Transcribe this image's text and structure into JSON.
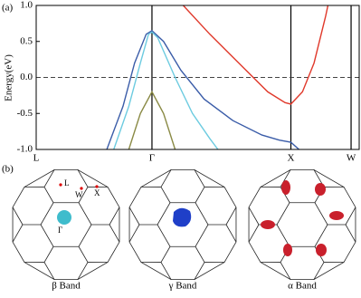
{
  "chart_data": {
    "type": "line",
    "label": "(a)",
    "ylabel": "Energy(eV)",
    "xlim": [
      0,
      2.79
    ],
    "ylim": [
      -1.0,
      1.0
    ],
    "xticks": [
      {
        "value": 0,
        "label": "L"
      },
      {
        "value": 1.0,
        "label": "Γ"
      },
      {
        "value": 2.2,
        "label": "X"
      },
      {
        "value": 2.72,
        "label": "W"
      }
    ],
    "yticks": [
      {
        "value": -1.0,
        "label": "-1.0"
      },
      {
        "value": -0.5,
        "label": "-0.5"
      },
      {
        "value": 0.0,
        "label": "0.0"
      },
      {
        "value": 0.5,
        "label": "0.5"
      },
      {
        "value": 1.0,
        "label": "1.0"
      }
    ],
    "reference_line": {
      "y": 0,
      "style": "dashed"
    },
    "series": [
      {
        "color": "#3a5ca8",
        "x": [
          0.61,
          0.75,
          0.85,
          0.95,
          1.0,
          1.1,
          1.25,
          1.45,
          1.7,
          1.95,
          2.1,
          2.2,
          2.27
        ],
        "values": [
          -1.0,
          -0.4,
          0.2,
          0.6,
          0.65,
          0.5,
          0.1,
          -0.3,
          -0.6,
          -0.8,
          -0.87,
          -0.9,
          -1.0
        ]
      },
      {
        "color": "#6ccbe0",
        "x": [
          0.67,
          0.8,
          0.9,
          0.97,
          1.0,
          1.05,
          1.2,
          1.35,
          1.5,
          1.57
        ],
        "values": [
          -1.0,
          -0.4,
          0.2,
          0.6,
          0.63,
          0.55,
          0.0,
          -0.5,
          -0.85,
          -1.0
        ]
      },
      {
        "color": "#8a8a45",
        "x": [
          0.8,
          0.9,
          1.0,
          1.1,
          1.2
        ],
        "values": [
          -1.0,
          -0.5,
          -0.2,
          -0.5,
          -1.0
        ]
      },
      {
        "color": "#e0392b",
        "x": [
          1.27,
          1.5,
          1.75,
          2.0,
          2.15,
          2.2,
          2.3,
          2.4,
          2.5,
          2.52
        ],
        "values": [
          1.0,
          0.6,
          0.2,
          -0.2,
          -0.35,
          -0.37,
          -0.2,
          0.2,
          0.85,
          1.0
        ]
      }
    ]
  },
  "panel_b": {
    "label": "(b)",
    "points": [
      "L",
      "W",
      "X",
      "Γ"
    ],
    "zones": [
      "β Band",
      "γ Band",
      "α Band"
    ]
  }
}
